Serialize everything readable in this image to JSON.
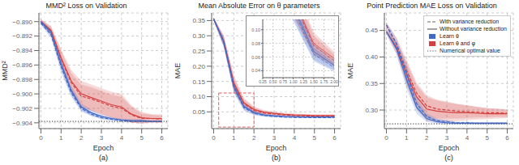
{
  "chart_data": [
    {
      "type": "line",
      "title": "MMD² Loss on Validation",
      "xlabel": "Epoch",
      "ylabel": "MMD²",
      "caption": "(a)",
      "grid": true,
      "x": [
        0.0,
        0.5,
        1.0,
        1.5,
        2.0,
        2.5,
        3.0,
        3.5,
        4.0,
        4.5,
        5.0,
        5.5,
        6.0
      ],
      "xlim": [
        -0.1,
        6.3
      ],
      "xticks": [
        0,
        1,
        2,
        3,
        4,
        5,
        6
      ],
      "ylim": [
        -0.9048,
        -0.8888
      ],
      "yticks": [
        {
          "value": -0.904,
          "label": "−0.904"
        },
        {
          "value": -0.902,
          "label": "−0.902"
        },
        {
          "value": -0.9,
          "label": "−0.900"
        },
        {
          "value": -0.898,
          "label": "−0.898"
        },
        {
          "value": -0.896,
          "label": "−0.896"
        },
        {
          "value": -0.894,
          "label": "−0.894"
        },
        {
          "value": -0.892,
          "label": "−0.892"
        },
        {
          "value": -0.89,
          "label": "−0.890"
        }
      ],
      "reference_line": {
        "y": -0.9038,
        "color": "#555555",
        "line_style": "dotted"
      },
      "series": [
        {
          "color": "#d44040",
          "line_style": "dashed",
          "values": [
            -0.89,
            -0.8913,
            -0.8952,
            -0.8984,
            -0.9003,
            -0.9007,
            -0.9012,
            -0.9017,
            -0.902,
            -0.9029,
            -0.9034,
            -0.9034,
            -0.9035
          ],
          "lower": [
            -0.8903,
            -0.8919,
            -0.8963,
            -0.8997,
            -0.9019,
            -0.9023,
            -0.9028,
            -0.9033,
            -0.9036,
            -0.904,
            -0.9041,
            -0.9039,
            -0.904
          ],
          "upper": [
            -0.8897,
            -0.8907,
            -0.8941,
            -0.8971,
            -0.8987,
            -0.8991,
            -0.8996,
            -0.9001,
            -0.9004,
            -0.9018,
            -0.9027,
            -0.9029,
            -0.903
          ]
        },
        {
          "color": "#d44040",
          "line_style": "solid",
          "values": [
            -0.89,
            -0.8912,
            -0.895,
            -0.8982,
            -0.9,
            -0.9005,
            -0.901,
            -0.9015,
            -0.9018,
            -0.9028,
            -0.9033,
            -0.9034,
            -0.9034
          ],
          "lower": [
            -0.8903,
            -0.8918,
            -0.8962,
            -0.8997,
            -0.9018,
            -0.9023,
            -0.9028,
            -0.9033,
            -0.9036,
            -0.904,
            -0.9041,
            -0.904,
            -0.904
          ],
          "upper": [
            -0.8897,
            -0.8906,
            -0.8938,
            -0.8967,
            -0.8982,
            -0.8987,
            -0.8992,
            -0.8997,
            -0.9,
            -0.9016,
            -0.9025,
            -0.9028,
            -0.9028
          ]
        },
        {
          "color": "#4169c8",
          "line_style": "dashed",
          "values": [
            -0.8902,
            -0.8918,
            -0.8962,
            -0.8998,
            -0.902,
            -0.9028,
            -0.9033,
            -0.9035,
            -0.9037,
            -0.9038,
            -0.9038,
            -0.9038,
            -0.9038
          ],
          "lower": [
            -0.8905,
            -0.8923,
            -0.897,
            -0.9004,
            -0.9024,
            -0.9031,
            -0.9035,
            -0.9037,
            -0.9039,
            -0.9039,
            -0.9039,
            -0.9039,
            -0.9039
          ],
          "upper": [
            -0.8899,
            -0.8913,
            -0.8954,
            -0.8992,
            -0.9016,
            -0.9025,
            -0.9031,
            -0.9033,
            -0.9035,
            -0.9037,
            -0.9037,
            -0.9037,
            -0.9037
          ]
        },
        {
          "color": "#4169c8",
          "line_style": "solid",
          "values": [
            -0.89,
            -0.8915,
            -0.8958,
            -0.8995,
            -0.9018,
            -0.9026,
            -0.9031,
            -0.9034,
            -0.9036,
            -0.9037,
            -0.9037,
            -0.9038,
            -0.9038
          ],
          "lower": [
            -0.8903,
            -0.892,
            -0.8967,
            -0.9002,
            -0.9023,
            -0.903,
            -0.9034,
            -0.9036,
            -0.9038,
            -0.9039,
            -0.9039,
            -0.9039,
            -0.9039
          ],
          "upper": [
            -0.8897,
            -0.891,
            -0.8949,
            -0.8988,
            -0.9013,
            -0.9022,
            -0.9028,
            -0.9032,
            -0.9034,
            -0.9035,
            -0.9035,
            -0.9037,
            -0.9037
          ]
        }
      ]
    },
    {
      "type": "line",
      "title": "Mean Absolute Error on θ parameters",
      "xlabel": "Epoch",
      "ylabel": "MAE",
      "caption": "(b)",
      "grid": true,
      "x": [
        0.0,
        0.5,
        1.0,
        1.5,
        2.0,
        2.5,
        3.0,
        3.5,
        4.0,
        4.5,
        5.0,
        5.5,
        6.0
      ],
      "xlim": [
        -0.1,
        6.3
      ],
      "xticks": [
        0,
        1,
        2,
        3,
        4,
        5,
        6
      ],
      "ylim": [
        -0.005,
        0.375
      ],
      "yticks": [
        0.05,
        {
          "value": 0.1,
          "label": "0.10"
        },
        0.15,
        {
          "value": 0.2,
          "label": "0.20"
        },
        0.25,
        {
          "value": 0.3,
          "label": "0.30"
        },
        0.35
      ],
      "zoom_box": {
        "x": [
          0.25,
          2.0
        ],
        "y": [
          0.0,
          0.112
        ],
        "color": "#e06060",
        "line_style": "dashed"
      },
      "inset": {
        "xlim": [
          0.25,
          2.0
        ],
        "ylim": [
          0.03,
          0.115
        ],
        "xticks": [
          0.25,
          {
            "value": 0.5,
            "label": "0.50"
          },
          0.75,
          {
            "value": 1.0,
            "label": "1.00"
          },
          1.25,
          {
            "value": 1.5,
            "label": "1.50"
          },
          1.75,
          {
            "value": 2.0,
            "label": "2.00"
          }
        ],
        "yticks": [
          0.04,
          0.06,
          0.08,
          {
            "value": 0.1,
            "label": "0.10"
          }
        ]
      },
      "series": [
        {
          "color": "#d44040",
          "line_style": "dashed",
          "values": [
            0.355,
            0.282,
            0.142,
            0.077,
            0.055,
            0.046,
            0.043,
            0.04,
            0.038,
            0.037,
            0.036,
            0.036,
            0.036
          ],
          "lower": [
            0.35,
            0.265,
            0.12,
            0.063,
            0.046,
            0.04,
            0.038,
            0.036,
            0.034,
            0.033,
            0.033,
            0.033,
            0.033
          ],
          "upper": [
            0.36,
            0.299,
            0.164,
            0.091,
            0.064,
            0.052,
            0.048,
            0.044,
            0.042,
            0.041,
            0.039,
            0.039,
            0.039
          ]
        },
        {
          "color": "#d44040",
          "line_style": "solid",
          "values": [
            0.355,
            0.283,
            0.145,
            0.08,
            0.058,
            0.049,
            0.045,
            0.042,
            0.04,
            0.039,
            0.038,
            0.038,
            0.038
          ],
          "lower": [
            0.35,
            0.265,
            0.12,
            0.064,
            0.048,
            0.042,
            0.039,
            0.037,
            0.035,
            0.035,
            0.034,
            0.034,
            0.034
          ],
          "upper": [
            0.36,
            0.301,
            0.17,
            0.096,
            0.068,
            0.056,
            0.051,
            0.047,
            0.045,
            0.043,
            0.042,
            0.042,
            0.042
          ]
        },
        {
          "color": "#4169c8",
          "line_style": "dashed",
          "values": [
            0.355,
            0.278,
            0.13,
            0.064,
            0.045,
            0.038,
            0.035,
            0.033,
            0.032,
            0.032,
            0.031,
            0.031,
            0.031
          ],
          "lower": [
            0.35,
            0.263,
            0.112,
            0.054,
            0.039,
            0.034,
            0.032,
            0.03,
            0.03,
            0.03,
            0.029,
            0.029,
            0.029
          ],
          "upper": [
            0.36,
            0.293,
            0.148,
            0.074,
            0.051,
            0.042,
            0.038,
            0.036,
            0.034,
            0.034,
            0.033,
            0.033,
            0.033
          ]
        },
        {
          "color": "#4169c8",
          "line_style": "solid",
          "values": [
            0.355,
            0.28,
            0.135,
            0.068,
            0.048,
            0.04,
            0.037,
            0.035,
            0.034,
            0.033,
            0.033,
            0.033,
            0.033
          ],
          "lower": [
            0.35,
            0.265,
            0.115,
            0.056,
            0.041,
            0.035,
            0.033,
            0.032,
            0.031,
            0.03,
            0.031,
            0.031,
            0.031
          ],
          "upper": [
            0.36,
            0.295,
            0.155,
            0.08,
            0.055,
            0.045,
            0.041,
            0.038,
            0.037,
            0.036,
            0.035,
            0.035,
            0.035
          ]
        }
      ]
    },
    {
      "type": "line",
      "title": "Point Prediction MAE Loss on Validation",
      "xlabel": "Epoch",
      "ylabel": "MAE",
      "caption": "(c)",
      "grid": true,
      "x": [
        0.0,
        0.5,
        1.0,
        1.5,
        2.0,
        2.5,
        3.0,
        3.5,
        4.0,
        4.5,
        5.0,
        5.5,
        6.0
      ],
      "xlim": [
        -0.1,
        6.3
      ],
      "xticks": [
        0,
        1,
        2,
        3,
        4,
        5,
        6
      ],
      "ylim": [
        0.265,
        0.483
      ],
      "yticks": [
        {
          "value": 0.3,
          "label": "0.30"
        },
        0.35,
        {
          "value": 0.4,
          "label": "0.40"
        },
        0.45
      ],
      "reference_line": {
        "y": 0.274,
        "color": "#555555",
        "line_style": "dotted"
      },
      "legend": "upper right",
      "legend_entries": [
        {
          "name": "With variance reduction",
          "color": "#666666",
          "line_style": "dashed"
        },
        {
          "name": "Without variance reduction",
          "color": "#666666",
          "line_style": "solid"
        },
        {
          "name": "Learn θ",
          "color": "#4169c8"
        },
        {
          "name": "Learn θ and φ",
          "color": "#d44040"
        },
        {
          "name": "Numerical optimal value",
          "color": "#555555",
          "line_style": "dotted"
        }
      ],
      "series": [
        {
          "color": "#d44040",
          "line_style": "dashed",
          "values": [
            0.46,
            0.425,
            0.375,
            0.332,
            0.308,
            0.302,
            0.3,
            0.298,
            0.297,
            0.296,
            0.295,
            0.295,
            0.294
          ],
          "lower": [
            0.455,
            0.413,
            0.355,
            0.312,
            0.288,
            0.284,
            0.284,
            0.284,
            0.285,
            0.286,
            0.286,
            0.287,
            0.287
          ],
          "upper": [
            0.465,
            0.437,
            0.395,
            0.352,
            0.328,
            0.32,
            0.316,
            0.312,
            0.309,
            0.306,
            0.304,
            0.303,
            0.301
          ]
        },
        {
          "color": "#d44040",
          "line_style": "solid",
          "values": [
            0.448,
            0.418,
            0.368,
            0.325,
            0.302,
            0.298,
            0.296,
            0.295,
            0.295,
            0.294,
            0.293,
            0.293,
            0.293
          ],
          "lower": [
            0.443,
            0.406,
            0.346,
            0.303,
            0.28,
            0.278,
            0.278,
            0.279,
            0.281,
            0.282,
            0.283,
            0.284,
            0.285
          ],
          "upper": [
            0.453,
            0.43,
            0.39,
            0.347,
            0.324,
            0.318,
            0.314,
            0.311,
            0.309,
            0.306,
            0.303,
            0.302,
            0.301
          ]
        },
        {
          "color": "#4169c8",
          "line_style": "dashed",
          "values": [
            0.46,
            0.425,
            0.368,
            0.312,
            0.288,
            0.28,
            0.278,
            0.276,
            0.276,
            0.275,
            0.275,
            0.275,
            0.275
          ],
          "lower": [
            0.455,
            0.415,
            0.35,
            0.3,
            0.282,
            0.276,
            0.275,
            0.274,
            0.274,
            0.273,
            0.273,
            0.273,
            0.273
          ],
          "upper": [
            0.465,
            0.435,
            0.386,
            0.324,
            0.294,
            0.284,
            0.281,
            0.278,
            0.278,
            0.277,
            0.277,
            0.277,
            0.277
          ]
        },
        {
          "color": "#4169c8",
          "line_style": "solid",
          "values": [
            0.448,
            0.415,
            0.358,
            0.305,
            0.284,
            0.278,
            0.276,
            0.275,
            0.275,
            0.275,
            0.275,
            0.275,
            0.275
          ],
          "lower": [
            0.443,
            0.405,
            0.34,
            0.293,
            0.278,
            0.274,
            0.273,
            0.273,
            0.273,
            0.273,
            0.273,
            0.273,
            0.273
          ],
          "upper": [
            0.453,
            0.425,
            0.376,
            0.317,
            0.29,
            0.282,
            0.279,
            0.277,
            0.277,
            0.277,
            0.277,
            0.277,
            0.277
          ]
        }
      ]
    }
  ]
}
